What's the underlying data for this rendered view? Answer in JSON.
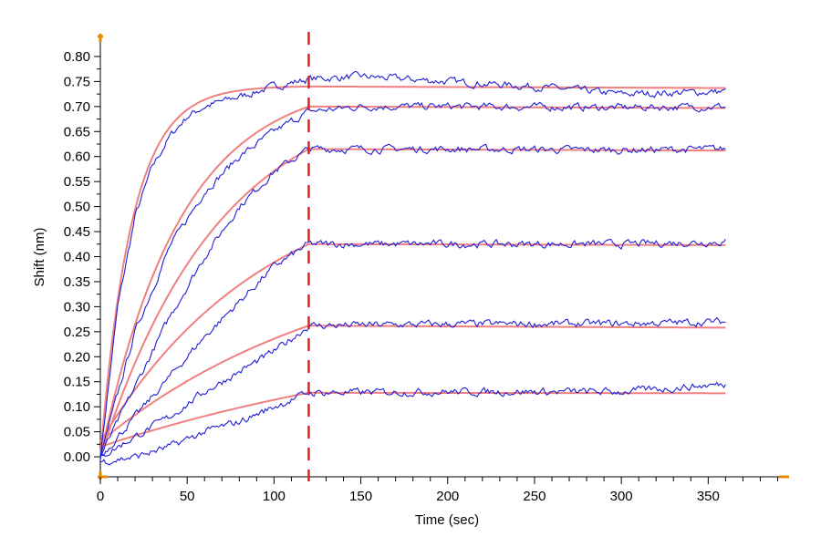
{
  "chart_data": {
    "type": "line",
    "title": "",
    "xlabel": "Time (sec)",
    "ylabel": "Shift (nm)",
    "xlim": [
      0,
      395
    ],
    "ylim": [
      -0.04,
      0.84
    ],
    "x_ticks": [
      0,
      50,
      100,
      150,
      200,
      250,
      300,
      350
    ],
    "y_ticks": [
      0.0,
      0.05,
      0.1,
      0.15,
      0.2,
      0.25,
      0.3,
      0.35,
      0.4,
      0.45,
      0.5,
      0.55,
      0.6,
      0.65,
      0.7,
      0.75,
      0.8
    ],
    "y_tick_labels": [
      "0.00",
      "0.05",
      "0.10",
      "0.15",
      "0.20",
      "0.25",
      "0.30",
      "0.35",
      "0.40",
      "0.45",
      "0.50",
      "0.55",
      "0.60",
      "0.65",
      "0.70",
      "0.75",
      "0.80"
    ],
    "x_tick_labels": [
      "0",
      "50",
      "100",
      "150",
      "200",
      "250",
      "300",
      "350"
    ],
    "grid": false,
    "legend": "none",
    "dissociation_start": 120,
    "x_end": 360,
    "colors": {
      "measured": "#1f1fd6",
      "fit": "#f08080",
      "marker": "#e02020",
      "axis_corner": "#e08a00"
    },
    "series": [
      {
        "assoc_end": 0.74,
        "dissoc_end": 0.737,
        "k": 0.055,
        "start": 0.0,
        "measured_points": [
          [
            0,
            0.0
          ],
          [
            10,
            0.3
          ],
          [
            20,
            0.48
          ],
          [
            30,
            0.58
          ],
          [
            40,
            0.64
          ],
          [
            50,
            0.68
          ],
          [
            60,
            0.7
          ],
          [
            80,
            0.72
          ],
          [
            100,
            0.74
          ],
          [
            120,
            0.755
          ],
          [
            150,
            0.76
          ],
          [
            200,
            0.75
          ],
          [
            250,
            0.74
          ],
          [
            300,
            0.725
          ],
          [
            360,
            0.73
          ]
        ]
      },
      {
        "assoc_end": 0.7,
        "dissoc_end": 0.697,
        "k": 0.0215,
        "start": 0.0,
        "measured_points": [
          [
            0,
            0.0
          ],
          [
            20,
            0.25
          ],
          [
            40,
            0.42
          ],
          [
            60,
            0.53
          ],
          [
            80,
            0.6
          ],
          [
            100,
            0.65
          ],
          [
            120,
            0.69
          ],
          [
            150,
            0.7
          ],
          [
            200,
            0.7
          ],
          [
            300,
            0.698
          ],
          [
            360,
            0.7
          ]
        ]
      },
      {
        "assoc_end": 0.615,
        "dissoc_end": 0.612,
        "k": 0.0145,
        "start": 0.0,
        "measured_points": [
          [
            0,
            0.0
          ],
          [
            20,
            0.14
          ],
          [
            40,
            0.28
          ],
          [
            60,
            0.4
          ],
          [
            80,
            0.5
          ],
          [
            100,
            0.57
          ],
          [
            120,
            0.615
          ],
          [
            200,
            0.615
          ],
          [
            300,
            0.613
          ],
          [
            360,
            0.615
          ]
        ]
      },
      {
        "assoc_end": 0.425,
        "dissoc_end": 0.423,
        "k": 0.0105,
        "start": 0.03,
        "measured_points": [
          [
            0,
            0.0
          ],
          [
            20,
            0.08
          ],
          [
            40,
            0.16
          ],
          [
            60,
            0.24
          ],
          [
            80,
            0.31
          ],
          [
            100,
            0.38
          ],
          [
            120,
            0.425
          ],
          [
            200,
            0.425
          ],
          [
            300,
            0.425
          ],
          [
            360,
            0.43
          ]
        ]
      },
      {
        "assoc_end": 0.262,
        "dissoc_end": 0.258,
        "k": 0.0072,
        "start": 0.03,
        "measured_points": [
          [
            0,
            0.0
          ],
          [
            20,
            0.04
          ],
          [
            40,
            0.08
          ],
          [
            60,
            0.13
          ],
          [
            80,
            0.17
          ],
          [
            100,
            0.21
          ],
          [
            120,
            0.262
          ],
          [
            200,
            0.265
          ],
          [
            300,
            0.266
          ],
          [
            360,
            0.27
          ]
        ]
      },
      {
        "assoc_end": 0.128,
        "dissoc_end": 0.127,
        "k": 0.0045,
        "start": 0.02,
        "measured_points": [
          [
            0,
            -0.01
          ],
          [
            20,
            0.0
          ],
          [
            40,
            0.02
          ],
          [
            60,
            0.05
          ],
          [
            80,
            0.07
          ],
          [
            100,
            0.1
          ],
          [
            120,
            0.128
          ],
          [
            200,
            0.13
          ],
          [
            300,
            0.13
          ],
          [
            360,
            0.145
          ]
        ]
      }
    ]
  }
}
